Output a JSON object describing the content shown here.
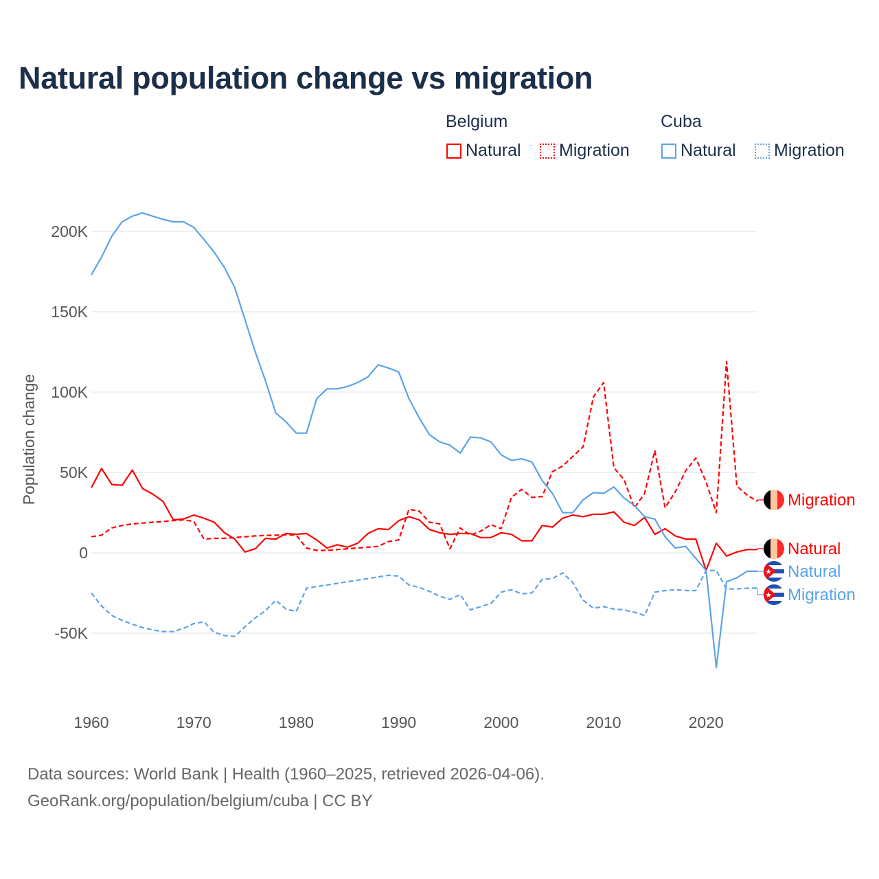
{
  "title": "Natural population change vs migration",
  "legend": {
    "groups": [
      {
        "label": "Belgium",
        "items": [
          {
            "label": "Natural",
            "style": "solid"
          },
          {
            "label": "Migration",
            "style": "dotted"
          }
        ],
        "color": "#ff0000"
      },
      {
        "label": "Cuba",
        "items": [
          {
            "label": "Natural",
            "style": "solid"
          },
          {
            "label": "Migration",
            "style": "dotted"
          }
        ],
        "color": "#5ba3e8"
      }
    ]
  },
  "footer": {
    "line1": "Data sources: World Bank | Health (1960–2025, retrieved 2026-04-06).",
    "line2": "GeoRank.org/population/belgium/cuba | CC BY"
  },
  "chart_data": {
    "type": "line",
    "title": "Natural population change vs migration",
    "xlabel": "",
    "ylabel": "Population change",
    "xlim": [
      1960,
      2025
    ],
    "ylim": [
      -80000,
      220000
    ],
    "x_ticks": [
      1960,
      1970,
      1980,
      1990,
      2000,
      2010,
      2020
    ],
    "y_ticks": [
      -50000,
      0,
      50000,
      100000,
      150000,
      200000
    ],
    "y_tick_labels": [
      "-50K",
      "0",
      "50K",
      "100K",
      "150K",
      "200K"
    ],
    "grid": true,
    "x_start": 1960,
    "series": [
      {
        "name": "Belgium Natural",
        "country": "Belgium",
        "end_label": "Natural",
        "color": "#ff0000",
        "dash": false,
        "values_k": [
          40.5,
          52.5,
          42.5,
          42,
          51.5,
          40,
          36.5,
          32,
          20.5,
          21,
          23.5,
          21.5,
          19,
          12.5,
          8.5,
          0.5,
          2.5,
          9,
          8.5,
          12,
          11.5,
          12,
          8,
          3,
          5,
          3.5,
          6,
          12,
          15,
          14.5,
          20,
          22.5,
          20.5,
          14.5,
          12.5,
          11.5,
          12,
          12,
          9.5,
          9.5,
          12.5,
          11.5,
          7.5,
          7.5,
          17,
          16,
          21.5,
          23.5,
          22.5,
          24,
          24,
          25.5,
          19,
          17,
          22,
          11.5,
          15,
          10.5,
          8.5,
          8.5,
          -11,
          6,
          -2,
          0.5,
          2,
          2
        ]
      },
      {
        "name": "Belgium Migration",
        "country": "Belgium",
        "end_label": "Migration",
        "color": "#ff0000",
        "dash": true,
        "values_k": [
          10,
          11,
          15.5,
          17,
          18,
          18.5,
          19,
          19.5,
          20,
          20.5,
          19.5,
          8.5,
          9,
          9,
          9.5,
          10,
          10.5,
          10.8,
          11,
          11.3,
          11,
          3,
          1.5,
          1.5,
          2,
          2.5,
          3,
          3.5,
          4,
          7,
          8,
          27,
          26,
          19,
          18,
          2.5,
          15.5,
          11,
          13.5,
          17.5,
          15,
          34.5,
          39.5,
          34.5,
          35,
          50.5,
          54,
          60,
          66,
          97,
          106,
          53,
          45.5,
          28,
          37,
          63.5,
          28,
          38,
          51,
          59,
          44,
          25,
          119,
          41.5,
          36,
          32
        ]
      },
      {
        "name": "Cuba Natural",
        "country": "Cuba",
        "end_label": "Natural",
        "color": "#5ba3e8",
        "dash": false,
        "values_k": [
          173,
          184,
          197,
          206,
          209.5,
          211.5,
          209.5,
          207.5,
          206,
          206,
          202.5,
          195,
          187,
          177.5,
          165,
          145,
          125,
          107,
          87,
          81.5,
          74.5,
          74.5,
          96,
          102,
          102,
          103.5,
          106,
          109.5,
          117,
          115,
          112.5,
          96,
          84,
          73.5,
          69,
          67,
          62,
          72,
          71.5,
          69,
          61,
          57.5,
          58.5,
          56.5,
          45,
          37,
          25,
          25,
          33,
          37.5,
          37,
          41,
          34,
          29.5,
          22.5,
          21,
          10,
          3,
          4,
          -3.5,
          -11,
          -71.5,
          -18,
          -15.5,
          -11.5,
          -11.5
        ]
      },
      {
        "name": "Cuba Migration",
        "country": "Cuba",
        "end_label": "Migration",
        "color": "#5ba3e8",
        "dash": true,
        "values_k": [
          -25,
          -33,
          -39,
          -42,
          -44.5,
          -46.5,
          -48,
          -49,
          -49,
          -47,
          -44,
          -43,
          -49.5,
          -51.5,
          -52,
          -46,
          -40.5,
          -36,
          -29.5,
          -35,
          -36.5,
          -22,
          -21,
          -20,
          -19,
          -18,
          -17,
          -16,
          -15,
          -14,
          -14.5,
          -20,
          -21.5,
          -24,
          -27,
          -29,
          -26,
          -35.5,
          -33.5,
          -31.5,
          -24.5,
          -23,
          -25.5,
          -25,
          -16.5,
          -16,
          -12.5,
          -18.5,
          -29.5,
          -34.5,
          -33.5,
          -35,
          -35.5,
          -37,
          -39,
          -24.5,
          -23.5,
          -23,
          -23.5,
          -23.5,
          -11,
          -11,
          -22.5,
          -22.5,
          -22,
          -22
        ]
      }
    ]
  }
}
